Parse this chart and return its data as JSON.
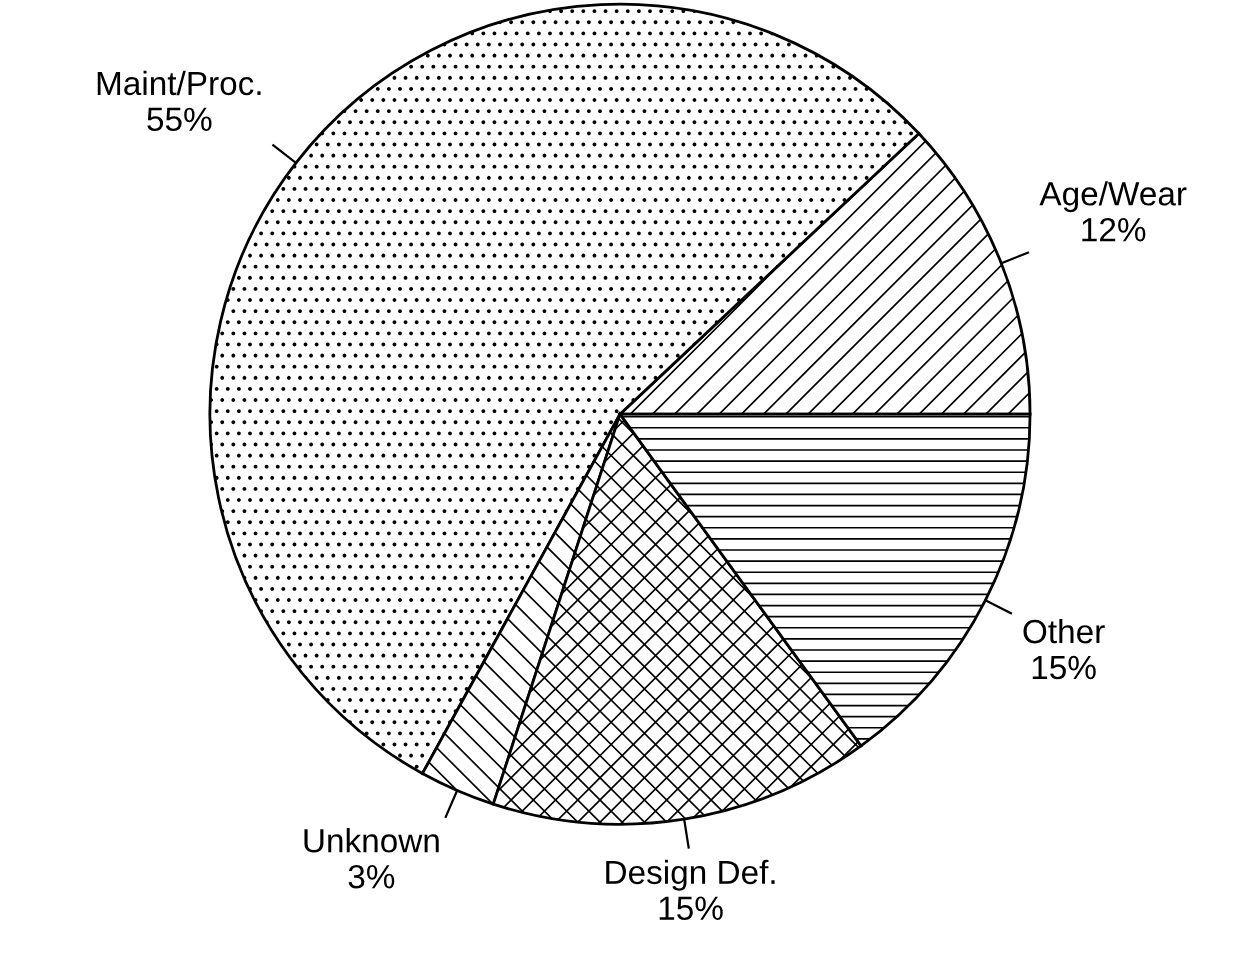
{
  "chart_data": {
    "type": "pie",
    "categories": [
      "Age/Wear",
      "Maint/Proc.",
      "Unknown",
      "Design Def.",
      "Other"
    ],
    "values": [
      12,
      55,
      3,
      15,
      15
    ],
    "value_labels": [
      "12%",
      "55%",
      "3%",
      "15%",
      "15%"
    ]
  }
}
